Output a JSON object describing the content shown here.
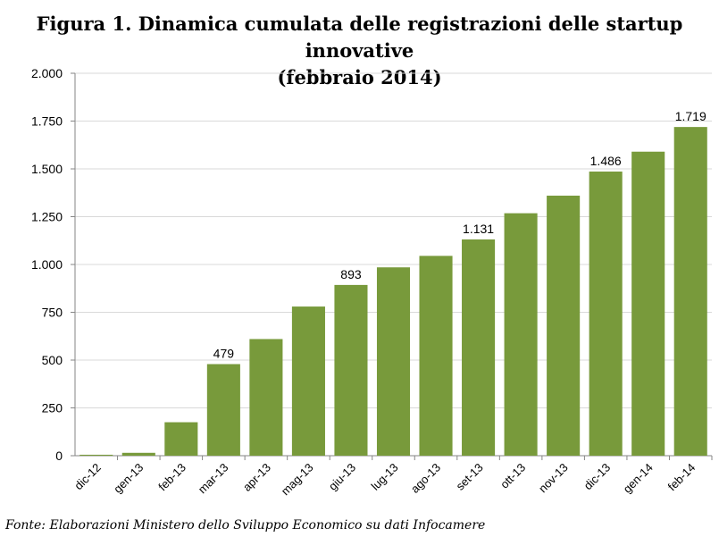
{
  "chart_data": {
    "type": "bar",
    "title": "Figura 1. Dinamica cumulata delle registrazioni delle startup innovative",
    "subtitle": "(febbraio 2014)",
    "categories": [
      "dic-12",
      "gen-13",
      "feb-13",
      "mar-13",
      "apr-13",
      "mag-13",
      "giu-13",
      "lug-13",
      "ago-13",
      "set-13",
      "ott-13",
      "nov-13",
      "dic-13",
      "gen-14",
      "feb-14"
    ],
    "values": [
      5,
      15,
      175,
      479,
      610,
      780,
      893,
      985,
      1045,
      1131,
      1268,
      1360,
      1486,
      1590,
      1719
    ],
    "data_labels": [
      "",
      "",
      "",
      "479",
      "",
      "",
      "893",
      "",
      "",
      "1.131",
      "",
      "",
      "1.486",
      "",
      "1.719"
    ],
    "ylim": [
      0,
      2000
    ],
    "yticks": [
      0,
      250,
      500,
      750,
      1000,
      1250,
      1500,
      1750,
      2000
    ],
    "ytick_labels": [
      "0",
      "250",
      "500",
      "750",
      "1.000",
      "1.250",
      "1.500",
      "1.750",
      "2.000"
    ],
    "xlabel": "",
    "ylabel": "",
    "grid": true,
    "bar_color": "#789A3B",
    "grid_color": "#D9D9D9"
  },
  "source_note": "Fonte: Elaborazioni Ministero dello Sviluppo Economico su dati Infocamere"
}
